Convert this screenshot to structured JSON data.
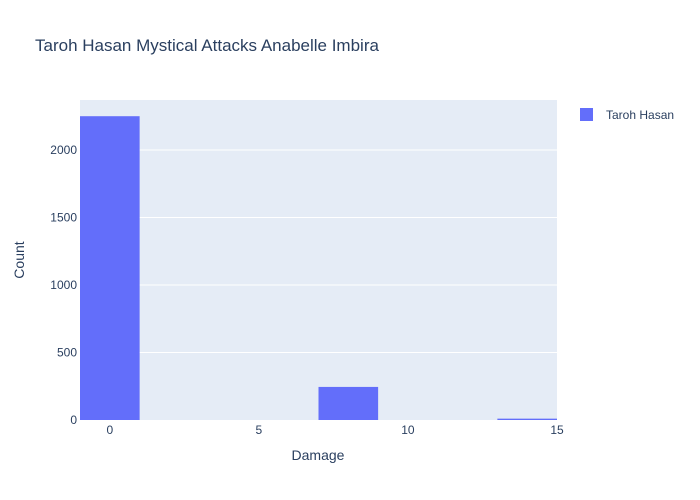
{
  "chart_data": {
    "type": "bar",
    "title": "Taroh Hasan Mystical Attacks Anabelle Imbira",
    "xlabel": "Damage",
    "ylabel": "Count",
    "x_ticks": [
      0,
      5,
      10,
      15
    ],
    "y_ticks": [
      0,
      500,
      1000,
      1500,
      2000
    ],
    "xlim": [
      -1,
      15
    ],
    "ylim": [
      0,
      2370
    ],
    "grid": true,
    "legend_position": "top-right",
    "series": [
      {
        "name": "Taroh Hasan",
        "color": "#636efa",
        "bins": [
          {
            "start": -1,
            "end": 1,
            "value": 2250
          },
          {
            "start": 1,
            "end": 3,
            "value": 0
          },
          {
            "start": 3,
            "end": 5,
            "value": 0
          },
          {
            "start": 5,
            "end": 7,
            "value": 0
          },
          {
            "start": 7,
            "end": 9,
            "value": 245
          },
          {
            "start": 9,
            "end": 11,
            "value": 0
          },
          {
            "start": 11,
            "end": 13,
            "value": 0
          },
          {
            "start": 13,
            "end": 15,
            "value": 10
          }
        ]
      }
    ]
  },
  "colors": {
    "plot_background": "#e5ecf6",
    "grid": "#ffffff",
    "text": "#2a3f5f"
  }
}
